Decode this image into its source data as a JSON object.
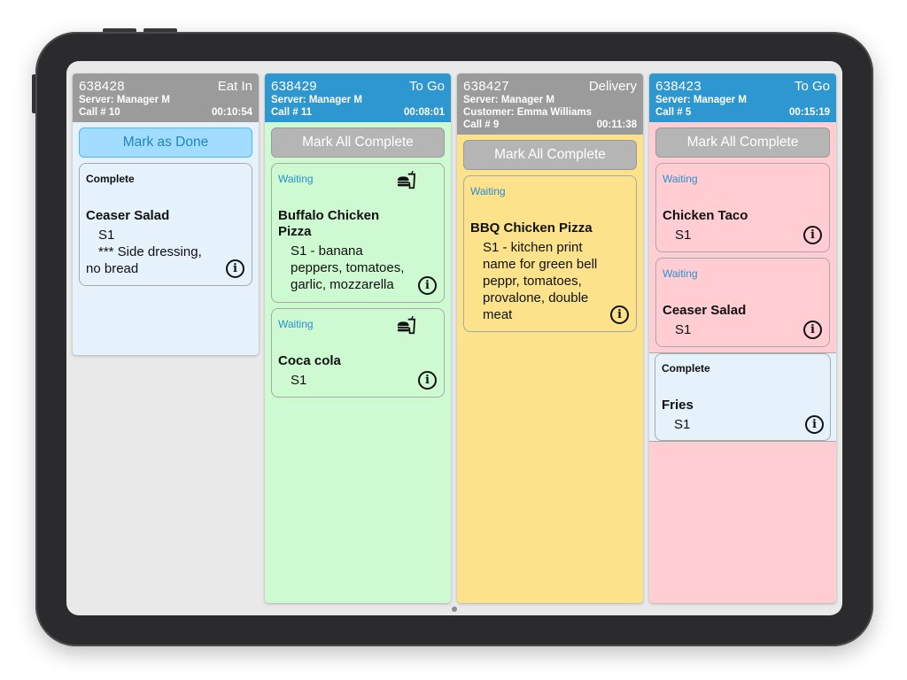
{
  "orders": [
    {
      "number": "638428",
      "type": "Eat In",
      "server": "Server: Manager M",
      "call": "Call # 10",
      "timer": "00:10:54",
      "action": "Mark as Done",
      "items": [
        {
          "status": "Complete",
          "name": "Ceaser Salad",
          "seat": "S1",
          "note": "*** Side dressing,",
          "note2": "no bread"
        }
      ]
    },
    {
      "number": "638429",
      "type": "To Go",
      "server": "Server: Manager M",
      "call": "Call # 11",
      "timer": "00:08:01",
      "action": "Mark All Complete",
      "items": [
        {
          "status": "Waiting",
          "name": "Buffalo Chicken Pizza",
          "detail": "S1 - banana peppers, tomatoes, garlic, mozzarella",
          "icon": "fast-food-icon"
        },
        {
          "status": "Waiting",
          "name": "Coca cola",
          "seat": "S1",
          "icon": "fast-food-icon"
        }
      ]
    },
    {
      "number": "638427",
      "type": "Delivery",
      "server": "Server: Manager M",
      "customer": "Customer: Emma Williams",
      "call": "Call # 9",
      "timer": "00:11:38",
      "action": "Mark All Complete",
      "items": [
        {
          "status": "Waiting",
          "name": "BBQ Chicken Pizza",
          "detail": "S1 - kitchen print name for green bell peppr, tomatoes, provalone, double meat"
        }
      ]
    },
    {
      "number": "638423",
      "type": "To Go",
      "server": "Server: Manager M",
      "call": "Call # 5",
      "timer": "00:15:19",
      "action": "Mark All Complete",
      "items": [
        {
          "status": "Waiting",
          "name": "Chicken Taco",
          "seat": "S1"
        },
        {
          "status": "Waiting",
          "name": "Ceaser Salad",
          "seat": "S1"
        },
        {
          "status": "Complete",
          "name": "Fries",
          "seat": "S1"
        }
      ]
    }
  ],
  "colors": {
    "header_gray": "#9b9b9b",
    "header_blue": "#2e97cf",
    "eat_in_bg": "#e5f1fb",
    "to_go_green_bg": "#cdfad0",
    "delivery_bg": "#fbe28b",
    "to_go_pink_bg": "#ffcdd2",
    "waiting_text": "#2b8ed0",
    "done_button": "#a2ddff"
  },
  "icons": {
    "info": "i"
  }
}
